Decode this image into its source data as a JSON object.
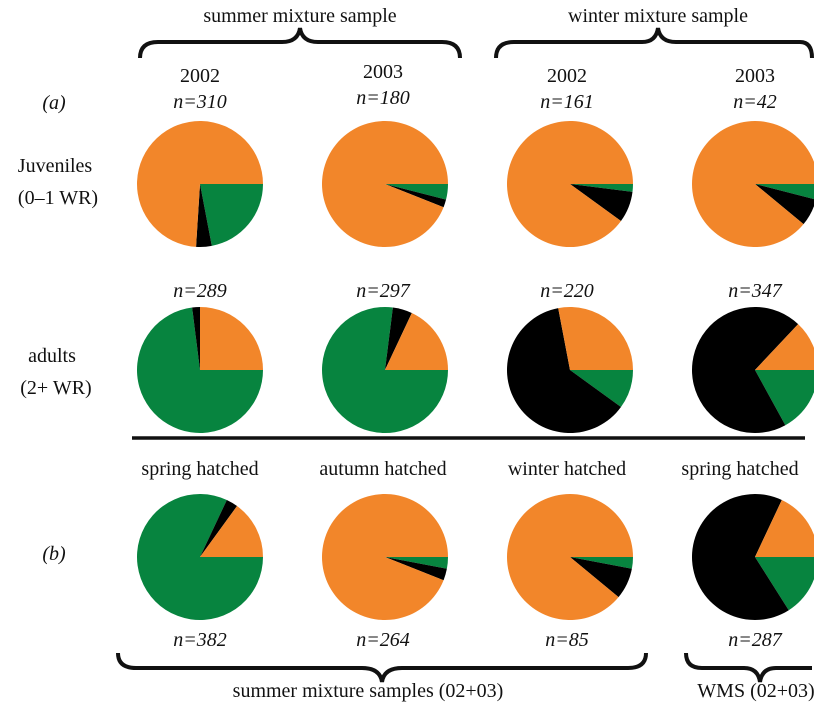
{
  "colors": {
    "orange": "#F2862A",
    "green": "#07843F",
    "black": "#000000"
  },
  "chart_data": {
    "type": "pie",
    "slice_order": [
      "green",
      "black",
      "orange"
    ],
    "section_labels": {
      "a": "(a)",
      "b": "(b)"
    },
    "headers": {
      "summer_bracket": "summer mixture sample",
      "winter_bracket": "winter mixture sample",
      "years": [
        {
          "year": "2002",
          "n": "n=310"
        },
        {
          "year": "2003",
          "n": "n=180"
        },
        {
          "year": "2002",
          "n": "n=161"
        },
        {
          "year": "2003",
          "n": "n=42"
        }
      ]
    },
    "row_labels": {
      "juveniles": [
        "Juveniles",
        "(0–1 WR)"
      ],
      "adults": [
        "adults",
        "(2+ WR)"
      ]
    },
    "juveniles": [
      {
        "n": "n=310",
        "green": 0.22,
        "black": 0.04,
        "orange": 0.74
      },
      {
        "n": "n=180",
        "green": 0.04,
        "black": 0.02,
        "orange": 0.94
      },
      {
        "n": "n=161",
        "green": 0.02,
        "black": 0.08,
        "orange": 0.9
      },
      {
        "n": "n=42",
        "green": 0.04,
        "black": 0.07,
        "orange": 0.89
      }
    ],
    "adults": [
      {
        "n": "n=289",
        "green": 0.73,
        "black": 0.02,
        "orange": 0.25
      },
      {
        "n": "n=297",
        "green": 0.77,
        "black": 0.05,
        "orange": 0.18
      },
      {
        "n": "n=220",
        "green": 0.1,
        "black": 0.62,
        "orange": 0.28
      },
      {
        "n": "n=347",
        "green": 0.17,
        "black": 0.7,
        "orange": 0.13
      }
    ],
    "hatch_labels": [
      "spring hatched",
      "autumn hatched",
      "winter hatched",
      "spring hatched"
    ],
    "hatched": [
      {
        "n": "n=382",
        "green": 0.82,
        "black": 0.03,
        "orange": 0.15
      },
      {
        "n": "n=264",
        "green": 0.03,
        "black": 0.03,
        "orange": 0.94
      },
      {
        "n": "n=85",
        "green": 0.03,
        "black": 0.08,
        "orange": 0.89
      },
      {
        "n": "n=287",
        "green": 0.16,
        "black": 0.66,
        "orange": 0.18
      }
    ],
    "footers": {
      "summer": "summer mixture samples (02+03)",
      "winter": "WMS (02+03)"
    }
  }
}
